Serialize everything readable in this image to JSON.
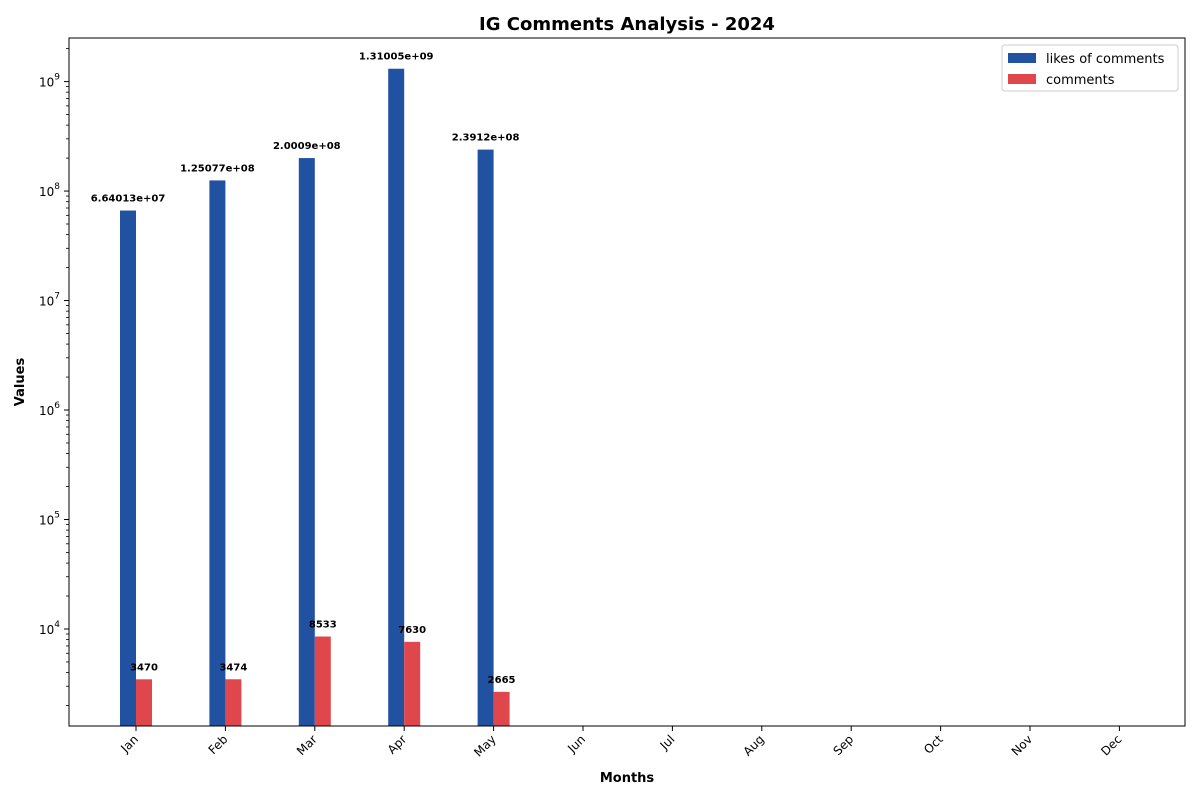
{
  "chart_data": {
    "type": "bar",
    "title": "IG Comments Analysis - 2024",
    "xlabel": "Months",
    "ylabel": "Values",
    "yscale": "log",
    "ylim": [
      1300,
      2500000000
    ],
    "categories": [
      "Jan",
      "Feb",
      "Mar",
      "Apr",
      "May",
      "Jun",
      "Jul",
      "Aug",
      "Sep",
      "Oct",
      "Nov",
      "Dec"
    ],
    "series": [
      {
        "name": "likes of comments",
        "color": "#2151a1",
        "values": [
          66401300,
          125077000,
          200090000,
          1310050000,
          239120000,
          null,
          null,
          null,
          null,
          null,
          null,
          null
        ],
        "labels": [
          "6.64013e+07",
          "1.25077e+08",
          "2.0009e+08",
          "1.31005e+09",
          "2.3912e+08"
        ]
      },
      {
        "name": "comments",
        "color": "#e0474c",
        "values": [
          3470,
          3474,
          8533,
          7630,
          2665,
          null,
          null,
          null,
          null,
          null,
          null,
          null
        ],
        "labels": [
          "3470",
          "3474",
          "8533",
          "7630",
          "2665"
        ]
      }
    ],
    "yticks": [
      {
        "base": "10",
        "exp": "4"
      },
      {
        "base": "10",
        "exp": "5"
      },
      {
        "base": "10",
        "exp": "6"
      },
      {
        "base": "10",
        "exp": "7"
      },
      {
        "base": "10",
        "exp": "8"
      },
      {
        "base": "10",
        "exp": "9"
      }
    ],
    "legend_position": "top-right",
    "grid": false
  }
}
